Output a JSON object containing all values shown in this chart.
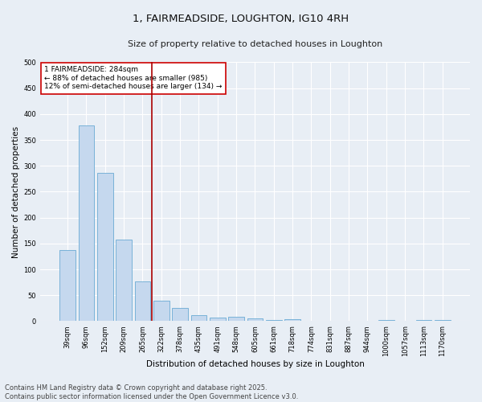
{
  "title": "1, FAIRMEADSIDE, LOUGHTON, IG10 4RH",
  "subtitle": "Size of property relative to detached houses in Loughton",
  "xlabel": "Distribution of detached houses by size in Loughton",
  "ylabel": "Number of detached properties",
  "categories": [
    "39sqm",
    "96sqm",
    "152sqm",
    "209sqm",
    "265sqm",
    "322sqm",
    "378sqm",
    "435sqm",
    "491sqm",
    "548sqm",
    "605sqm",
    "661sqm",
    "718sqm",
    "774sqm",
    "831sqm",
    "887sqm",
    "944sqm",
    "1000sqm",
    "1057sqm",
    "1113sqm",
    "1170sqm"
  ],
  "values": [
    137,
    378,
    287,
    158,
    77,
    39,
    26,
    12,
    7,
    9,
    5,
    3,
    4,
    0,
    0,
    0,
    0,
    3,
    0,
    3,
    2
  ],
  "bar_color": "#c5d8ee",
  "bar_edge_color": "#6aaad4",
  "vline_color": "#aa0000",
  "annotation_text": "1 FAIRMEADSIDE: 284sqm\n← 88% of detached houses are smaller (985)\n12% of semi-detached houses are larger (134) →",
  "annotation_box_color": "#ffffff",
  "annotation_box_edge": "#cc0000",
  "ylim": [
    0,
    500
  ],
  "yticks": [
    0,
    50,
    100,
    150,
    200,
    250,
    300,
    350,
    400,
    450,
    500
  ],
  "footer": "Contains HM Land Registry data © Crown copyright and database right 2025.\nContains public sector information licensed under the Open Government Licence v3.0.",
  "bg_color": "#e8eef5",
  "grid_color": "#ffffff",
  "title_fontsize": 9.5,
  "subtitle_fontsize": 8,
  "tick_fontsize": 6,
  "axis_label_fontsize": 7.5,
  "footer_fontsize": 6,
  "annotation_fontsize": 6.5
}
